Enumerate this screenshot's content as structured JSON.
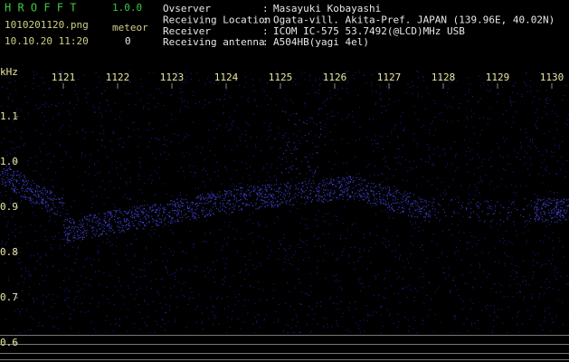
{
  "header": {
    "app": "H R O F F T",
    "version": "1.0.0",
    "file": "1010201120.png",
    "meteor_label": "meteor",
    "datetime": "10.10.20 11:20",
    "meteor_count": "0"
  },
  "info": [
    {
      "label": "Ovserver",
      "value": "Masayuki Kobayashi"
    },
    {
      "label": "Receiving Location",
      "value": "Ogata-vill. Akita-Pref. JAPAN (139.96E, 40.02N)"
    },
    {
      "label": "Receiver",
      "value": "ICOM IC-575 53.7492(@LCD)MHz USB"
    },
    {
      "label": "Receiving antenna",
      "value": "A504HB(yagi 4el)"
    }
  ],
  "separator": ":",
  "axis": {
    "unit": "kHz",
    "x_labels": [
      "1121",
      "1122",
      "1123",
      "1124",
      "1125",
      "1126",
      "1127",
      "1128",
      "1129",
      "1130"
    ],
    "y_labels": [
      "1.1",
      "1.0",
      "0.9",
      "0.8",
      "0.7",
      "0.6"
    ]
  }
}
